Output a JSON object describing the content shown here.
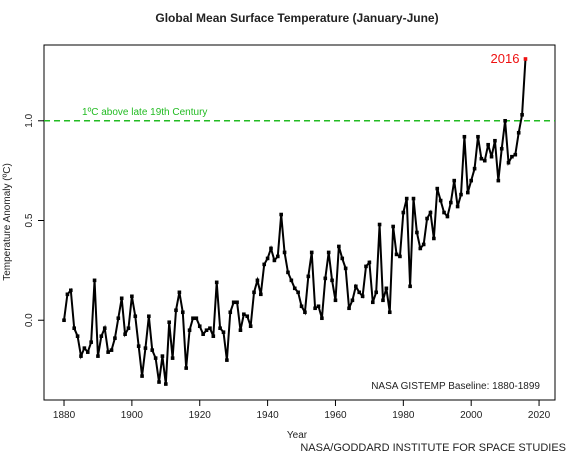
{
  "chart_data": {
    "type": "line",
    "title": "Global Mean Surface Temperature (January-June)",
    "x_label": "Year",
    "y_label": "Temperature Anomaly (ºC)",
    "x": [
      1880,
      1881,
      1882,
      1883,
      1884,
      1885,
      1886,
      1887,
      1888,
      1889,
      1890,
      1891,
      1892,
      1893,
      1894,
      1895,
      1896,
      1897,
      1898,
      1899,
      1900,
      1901,
      1902,
      1903,
      1904,
      1905,
      1906,
      1907,
      1908,
      1909,
      1910,
      1911,
      1912,
      1913,
      1914,
      1915,
      1916,
      1917,
      1918,
      1919,
      1920,
      1921,
      1922,
      1923,
      1924,
      1925,
      1926,
      1927,
      1928,
      1929,
      1930,
      1931,
      1932,
      1933,
      1934,
      1935,
      1936,
      1937,
      1938,
      1939,
      1940,
      1941,
      1942,
      1943,
      1944,
      1945,
      1946,
      1947,
      1948,
      1949,
      1950,
      1951,
      1952,
      1953,
      1954,
      1955,
      1956,
      1957,
      1958,
      1959,
      1960,
      1961,
      1962,
      1963,
      1964,
      1965,
      1966,
      1967,
      1968,
      1969,
      1970,
      1971,
      1972,
      1973,
      1974,
      1975,
      1976,
      1977,
      1978,
      1979,
      1980,
      1981,
      1982,
      1983,
      1984,
      1985,
      1986,
      1987,
      1988,
      1989,
      1990,
      1991,
      1992,
      1993,
      1994,
      1995,
      1996,
      1997,
      1998,
      1999,
      2000,
      2001,
      2002,
      2003,
      2004,
      2005,
      2006,
      2007,
      2008,
      2009,
      2010,
      2011,
      2012,
      2013,
      2014,
      2015,
      2016
    ],
    "series": [
      {
        "color": "#000000",
        "values": [
          0.0,
          0.13,
          0.15,
          -0.04,
          -0.08,
          -0.18,
          -0.14,
          -0.16,
          -0.11,
          0.2,
          -0.18,
          -0.08,
          -0.04,
          -0.16,
          -0.15,
          -0.09,
          0.01,
          0.11,
          -0.07,
          -0.04,
          0.12,
          0.02,
          -0.13,
          -0.28,
          -0.14,
          0.02,
          -0.15,
          -0.19,
          -0.31,
          -0.18,
          -0.32,
          -0.01,
          -0.19,
          0.05,
          0.14,
          0.04,
          -0.24,
          -0.05,
          0.01,
          0.01,
          -0.03,
          -0.07,
          -0.05,
          -0.04,
          -0.08,
          0.19,
          -0.04,
          -0.06,
          -0.2,
          0.04,
          0.09,
          0.09,
          -0.05,
          0.03,
          0.02,
          -0.03,
          0.14,
          0.2,
          0.13,
          0.28,
          0.31,
          0.36,
          0.3,
          0.32,
          0.53,
          0.34,
          0.24,
          0.2,
          0.16,
          0.14,
          0.07,
          0.04,
          0.22,
          0.34,
          0.06,
          0.07,
          0.01,
          0.21,
          0.34,
          0.2,
          0.1,
          0.37,
          0.31,
          0.26,
          0.06,
          0.1,
          0.17,
          0.14,
          0.12,
          0.27,
          0.29,
          0.09,
          0.14,
          0.48,
          0.1,
          0.16,
          0.04,
          0.47,
          0.33,
          0.32,
          0.54,
          0.61,
          0.17,
          0.61,
          0.44,
          0.36,
          0.38,
          0.51,
          0.54,
          0.41,
          0.66,
          0.6,
          0.54,
          0.52,
          0.59,
          0.7,
          0.57,
          0.63,
          0.92,
          0.64,
          0.7,
          0.76,
          0.92,
          0.81,
          0.8,
          0.88,
          0.82,
          0.9,
          0.7,
          0.86,
          1.0,
          0.79,
          0.82,
          0.83,
          0.94,
          1.03,
          1.31
        ]
      }
    ],
    "highlight": {
      "label": "2016",
      "color": "#ee1111"
    },
    "reference_line": {
      "value": 1.0,
      "label": "1ºC above late 19th Century",
      "color": "#22bb22"
    },
    "baseline_note": "NASA GISTEMP Baseline: 1880-1899",
    "source": "NASA/GODDARD INSTITUTE FOR SPACE STUDIES",
    "xlim": [
      1874.1,
      2024.7
    ],
    "ylim": [
      -0.4,
      1.38
    ],
    "xticks": [
      1880,
      1900,
      1920,
      1940,
      1960,
      1980,
      2000,
      2020
    ],
    "yticks": [
      {
        "value": 0.0,
        "label": "0.0"
      },
      {
        "value": 0.5,
        "label": "0.5"
      },
      {
        "value": 1.0,
        "label": "1.0"
      }
    ]
  }
}
